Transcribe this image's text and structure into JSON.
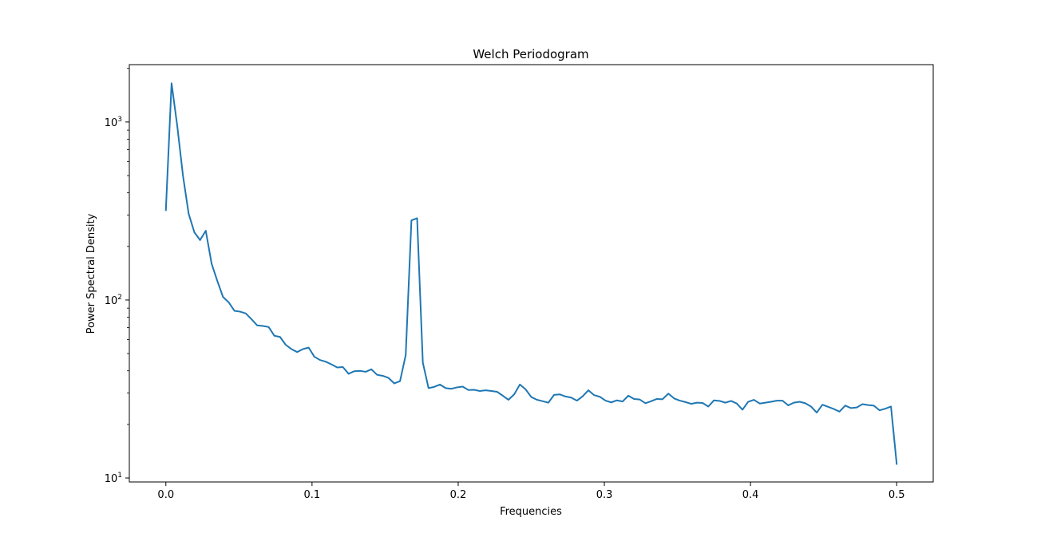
{
  "chart_data": {
    "type": "line",
    "title": "Welch Periodogram",
    "xlabel": "Frequencies",
    "ylabel": "Power Spectral Density",
    "xlim": [
      -0.025,
      0.525
    ],
    "ylim": [
      9.5,
      2100
    ],
    "yscale": "log",
    "grid": false,
    "xticks": [
      {
        "value": 0.0,
        "label": "0.0"
      },
      {
        "value": 0.1,
        "label": "0.1"
      },
      {
        "value": 0.2,
        "label": "0.2"
      },
      {
        "value": 0.3,
        "label": "0.3"
      },
      {
        "value": 0.4,
        "label": "0.4"
      },
      {
        "value": 0.5,
        "label": "0.5"
      }
    ],
    "yticks": [
      {
        "value": 10,
        "base": "10",
        "exp": "1"
      },
      {
        "value": 100,
        "base": "10",
        "exp": "2"
      },
      {
        "value": 1000,
        "base": "10",
        "exp": "3"
      }
    ],
    "series": [
      {
        "color": "#1f77b4",
        "x": [
          0,
          0.0039,
          0.0078,
          0.0117,
          0.0156,
          0.0195,
          0.0234,
          0.0273,
          0.0313,
          0.0352,
          0.0391,
          0.043,
          0.0469,
          0.0508,
          0.0547,
          0.0586,
          0.0625,
          0.0664,
          0.0703,
          0.0742,
          0.0781,
          0.082,
          0.0859,
          0.0898,
          0.0938,
          0.0977,
          0.1016,
          0.1055,
          0.1094,
          0.1133,
          0.1172,
          0.1211,
          0.125,
          0.1289,
          0.1328,
          0.1367,
          0.1406,
          0.1445,
          0.1484,
          0.1523,
          0.1563,
          0.1602,
          0.1641,
          0.168,
          0.1719,
          0.1758,
          0.1797,
          0.1836,
          0.1875,
          0.1914,
          0.1953,
          0.1992,
          0.2031,
          0.207,
          0.2109,
          0.2148,
          0.2188,
          0.2227,
          0.2266,
          0.2305,
          0.2344,
          0.2383,
          0.2422,
          0.2461,
          0.25,
          0.2539,
          0.2578,
          0.2617,
          0.2656,
          0.2695,
          0.2734,
          0.2773,
          0.2813,
          0.2852,
          0.2891,
          0.293,
          0.2969,
          0.3008,
          0.3047,
          0.3086,
          0.3125,
          0.3164,
          0.3203,
          0.3242,
          0.3281,
          0.332,
          0.3359,
          0.3398,
          0.3438,
          0.3477,
          0.3516,
          0.3555,
          0.3594,
          0.3633,
          0.3672,
          0.3711,
          0.375,
          0.3789,
          0.3828,
          0.3867,
          0.3906,
          0.3945,
          0.3984,
          0.4023,
          0.4063,
          0.4102,
          0.4141,
          0.418,
          0.4219,
          0.4258,
          0.4297,
          0.4336,
          0.4375,
          0.4414,
          0.4453,
          0.4492,
          0.4531,
          0.457,
          0.4609,
          0.4648,
          0.4688,
          0.4727,
          0.4766,
          0.4805,
          0.4844,
          0.4883,
          0.4922,
          0.4961,
          0.5
        ],
        "y": [
          320,
          1650,
          950,
          500,
          305,
          240,
          217,
          245,
          160,
          128,
          104,
          97,
          87,
          86,
          84,
          78,
          72,
          71.5,
          70.5,
          63,
          62,
          56,
          53,
          51,
          53,
          54,
          48,
          46,
          45,
          43.5,
          41.8,
          42,
          38.5,
          39.8,
          40,
          39.5,
          40.8,
          38,
          37.5,
          36.5,
          34,
          35,
          49,
          280,
          288,
          44.5,
          32,
          32.5,
          33.5,
          32,
          31.7,
          32.3,
          32.6,
          31.2,
          31.3,
          30.8,
          31.1,
          30.8,
          30.5,
          29,
          27.5,
          29.5,
          33.5,
          31.5,
          28.5,
          27.5,
          27,
          26.5,
          29.3,
          29.5,
          28.7,
          28.3,
          27.2,
          28.8,
          31.1,
          29.2,
          28.6,
          27.2,
          26.6,
          27.3,
          26.9,
          29,
          27.8,
          27.6,
          26.3,
          27,
          27.8,
          27.7,
          29.8,
          28,
          27.2,
          26.7,
          26.1,
          26.5,
          26.4,
          25.2,
          27.3,
          27.1,
          26.5,
          27.1,
          26.2,
          24.2,
          26.8,
          27.5,
          26.2,
          26.5,
          26.8,
          27.2,
          27.2,
          25.6,
          26.5,
          26.8,
          26.3,
          25.2,
          23.3,
          25.8,
          25.1,
          24.4,
          23.6,
          25.5,
          24.7,
          24.9,
          26,
          25.7,
          25.5,
          24,
          24.5,
          25.2,
          12
        ]
      }
    ]
  }
}
